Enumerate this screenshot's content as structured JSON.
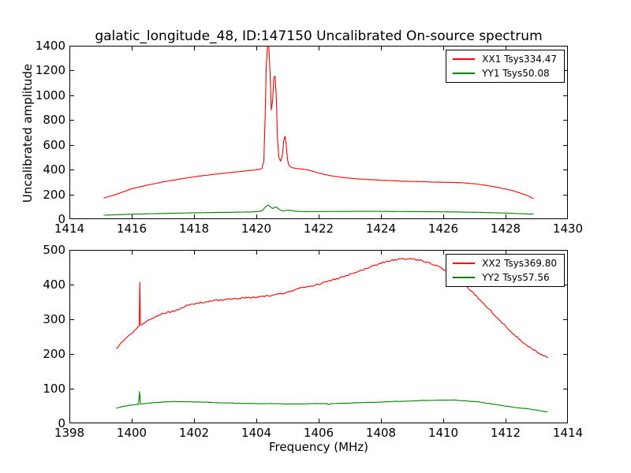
{
  "figure": {
    "title": "galatic_longitude_48, ID:147150 Uncalibrated On-source spectrum",
    "xlabel": "Frequency (MHz)",
    "ylabel": "Uncalibrated amplitude",
    "background": "#ffffff",
    "axis_color": "#000000"
  },
  "chart_data": [
    {
      "type": "line",
      "subplot": "top",
      "xlim": [
        1414,
        1430
      ],
      "ylim": [
        0,
        1400
      ],
      "xticks": [
        1414,
        1416,
        1418,
        1420,
        1422,
        1424,
        1426,
        1428,
        1430
      ],
      "yticks": [
        0,
        200,
        400,
        600,
        800,
        1000,
        1200,
        1400
      ],
      "grid": false,
      "legend_position": "upper right",
      "series": [
        {
          "name": "XX1 Tsys334.47",
          "color": "#ff0000",
          "noise": 0.9,
          "points": [
            [
              1415.1,
              170
            ],
            [
              1415.5,
              200
            ],
            [
              1416.0,
              245
            ],
            [
              1416.5,
              275
            ],
            [
              1417.0,
              300
            ],
            [
              1417.5,
              322
            ],
            [
              1418.0,
              342
            ],
            [
              1418.5,
              358
            ],
            [
              1419.0,
              372
            ],
            [
              1419.5,
              385
            ],
            [
              1419.9,
              396
            ],
            [
              1420.1,
              402
            ],
            [
              1420.18,
              410
            ],
            [
              1420.24,
              470
            ],
            [
              1420.28,
              800
            ],
            [
              1420.32,
              1250
            ],
            [
              1420.36,
              1400
            ],
            [
              1420.4,
              1400
            ],
            [
              1420.44,
              1180
            ],
            [
              1420.48,
              880
            ],
            [
              1420.52,
              950
            ],
            [
              1420.56,
              1140
            ],
            [
              1420.6,
              1155
            ],
            [
              1420.64,
              1000
            ],
            [
              1420.68,
              640
            ],
            [
              1420.72,
              500
            ],
            [
              1420.78,
              468
            ],
            [
              1420.84,
              520
            ],
            [
              1420.88,
              635
            ],
            [
              1420.92,
              668
            ],
            [
              1420.96,
              600
            ],
            [
              1421.0,
              480
            ],
            [
              1421.05,
              432
            ],
            [
              1421.15,
              415
            ],
            [
              1421.35,
              408
            ],
            [
              1421.6,
              400
            ],
            [
              1421.8,
              388
            ],
            [
              1422.0,
              372
            ],
            [
              1422.4,
              350
            ],
            [
              1422.8,
              336
            ],
            [
              1423.2,
              326
            ],
            [
              1423.7,
              318
            ],
            [
              1424.2,
              312
            ],
            [
              1424.7,
              307
            ],
            [
              1425.2,
              303
            ],
            [
              1425.7,
              300
            ],
            [
              1426.2,
              297
            ],
            [
              1426.6,
              294
            ],
            [
              1427.0,
              286
            ],
            [
              1427.4,
              272
            ],
            [
              1427.8,
              254
            ],
            [
              1428.2,
              232
            ],
            [
              1428.5,
              208
            ],
            [
              1428.7,
              190
            ],
            [
              1428.9,
              165
            ]
          ]
        },
        {
          "name": "YY1 Tsys50.08",
          "color": "#008000",
          "noise": 0.5,
          "points": [
            [
              1415.1,
              32
            ],
            [
              1416.0,
              40
            ],
            [
              1417.0,
              46
            ],
            [
              1418.0,
              51
            ],
            [
              1419.0,
              55
            ],
            [
              1419.8,
              58
            ],
            [
              1420.1,
              62
            ],
            [
              1420.2,
              72
            ],
            [
              1420.28,
              95
            ],
            [
              1420.34,
              108
            ],
            [
              1420.4,
              112
            ],
            [
              1420.46,
              98
            ],
            [
              1420.52,
              86
            ],
            [
              1420.58,
              94
            ],
            [
              1420.64,
              97
            ],
            [
              1420.7,
              85
            ],
            [
              1420.78,
              72
            ],
            [
              1420.86,
              66
            ],
            [
              1420.95,
              70
            ],
            [
              1421.05,
              73
            ],
            [
              1421.15,
              68
            ],
            [
              1421.3,
              63
            ],
            [
              1421.6,
              61
            ],
            [
              1422.2,
              62
            ],
            [
              1423.0,
              63
            ],
            [
              1424.0,
              63
            ],
            [
              1425.0,
              61
            ],
            [
              1426.0,
              59
            ],
            [
              1426.8,
              57
            ],
            [
              1427.4,
              53
            ],
            [
              1428.0,
              49
            ],
            [
              1428.5,
              44
            ],
            [
              1428.9,
              40
            ]
          ]
        }
      ]
    },
    {
      "type": "line",
      "subplot": "bottom",
      "xlim": [
        1398,
        1414
      ],
      "ylim": [
        0,
        500
      ],
      "xticks": [
        1398,
        1400,
        1402,
        1404,
        1406,
        1408,
        1410,
        1412,
        1414
      ],
      "yticks": [
        0,
        100,
        200,
        300,
        400,
        500
      ],
      "grid": false,
      "legend_position": "upper right",
      "series": [
        {
          "name": "XX2 Tsys369.80",
          "color": "#ff0000",
          "noise": 2.2,
          "points": [
            [
              1399.5,
              215
            ],
            [
              1399.7,
              235
            ],
            [
              1399.9,
              252
            ],
            [
              1400.1,
              268
            ],
            [
              1400.2,
              278
            ],
            [
              1400.24,
              281
            ],
            [
              1400.26,
              405
            ],
            [
              1400.28,
              283
            ],
            [
              1400.4,
              290
            ],
            [
              1400.7,
              305
            ],
            [
              1401.0,
              316
            ],
            [
              1401.4,
              326
            ],
            [
              1401.8,
              340
            ],
            [
              1402.2,
              348
            ],
            [
              1402.6,
              353
            ],
            [
              1403.0,
              357
            ],
            [
              1403.4,
              360
            ],
            [
              1403.9,
              363
            ],
            [
              1404.4,
              368
            ],
            [
              1404.9,
              376
            ],
            [
              1405.4,
              390
            ],
            [
              1405.9,
              399
            ],
            [
              1406.4,
              412
            ],
            [
              1406.9,
              425
            ],
            [
              1407.4,
              442
            ],
            [
              1407.8,
              456
            ],
            [
              1408.1,
              465
            ],
            [
              1408.4,
              471
            ],
            [
              1408.7,
              474
            ],
            [
              1409.0,
              473
            ],
            [
              1409.3,
              469
            ],
            [
              1409.6,
              461
            ],
            [
              1409.9,
              449
            ],
            [
              1410.2,
              432
            ],
            [
              1410.5,
              412
            ],
            [
              1410.8,
              390
            ],
            [
              1411.1,
              364
            ],
            [
              1411.4,
              336
            ],
            [
              1411.7,
              308
            ],
            [
              1412.0,
              280
            ],
            [
              1412.3,
              254
            ],
            [
              1412.6,
              231
            ],
            [
              1412.9,
              212
            ],
            [
              1413.2,
              196
            ],
            [
              1413.35,
              188
            ]
          ]
        },
        {
          "name": "YY2 Tsys57.56",
          "color": "#008000",
          "noise": 0.6,
          "points": [
            [
              1399.5,
              44
            ],
            [
              1399.8,
              50
            ],
            [
              1400.0,
              53
            ],
            [
              1400.15,
              54
            ],
            [
              1400.22,
              55
            ],
            [
              1400.25,
              92
            ],
            [
              1400.28,
              56
            ],
            [
              1400.5,
              58
            ],
            [
              1400.8,
              60
            ],
            [
              1401.1,
              62
            ],
            [
              1401.5,
              63
            ],
            [
              1401.9,
              62
            ],
            [
              1402.4,
              61
            ],
            [
              1402.9,
              59
            ],
            [
              1403.4,
              58
            ],
            [
              1403.9,
              57
            ],
            [
              1404.4,
              57
            ],
            [
              1404.9,
              56
            ],
            [
              1405.4,
              56
            ],
            [
              1405.9,
              57
            ],
            [
              1406.25,
              57
            ],
            [
              1406.32,
              54
            ],
            [
              1406.4,
              57
            ],
            [
              1406.9,
              58
            ],
            [
              1407.4,
              60
            ],
            [
              1407.9,
              61
            ],
            [
              1408.4,
              63
            ],
            [
              1408.9,
              64
            ],
            [
              1409.4,
              66
            ],
            [
              1409.9,
              67
            ],
            [
              1410.3,
              67
            ],
            [
              1410.7,
              65
            ],
            [
              1411.1,
              62
            ],
            [
              1411.5,
              57
            ],
            [
              1411.9,
              51
            ],
            [
              1412.3,
              46
            ],
            [
              1412.7,
              42
            ],
            [
              1413.0,
              38
            ],
            [
              1413.35,
              33
            ]
          ]
        }
      ]
    }
  ]
}
